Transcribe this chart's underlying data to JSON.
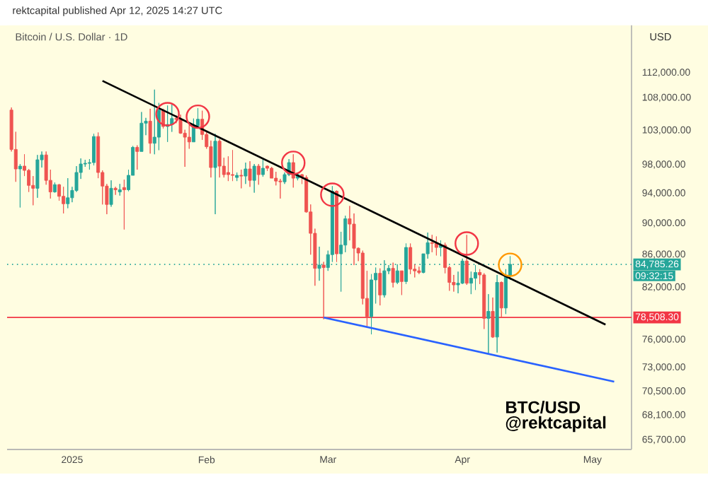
{
  "chart_data": {
    "type": "candlestick",
    "title": "Bitcoin / U.S. Dollar · 1D",
    "ylabel": "USD",
    "annotations": [
      "rektcapital published Apr 12, 2025 14:27 UTC",
      "BTC/USD",
      "@rektcapital",
      "09:32:15"
    ],
    "log": true,
    "xlim": [
      "2024-12-17",
      "2025-05-10"
    ],
    "ylim": [
      64800,
      120000
    ],
    "xticks": [
      {
        "value": "2025-01-01",
        "label": "2025"
      },
      {
        "value": "2025-02-01",
        "label": "Feb"
      },
      {
        "value": "2025-03-01",
        "label": "Mar"
      },
      {
        "value": "2025-04-01",
        "label": "Apr"
      },
      {
        "value": "2025-05-01",
        "label": "May"
      }
    ],
    "yticks": [
      {
        "value": 112000,
        "label": "112,000.00"
      },
      {
        "value": 108000,
        "label": "108,000.00"
      },
      {
        "value": 103000,
        "label": "103,000.00"
      },
      {
        "value": 98000,
        "label": "98,000.00"
      },
      {
        "value": 94000,
        "label": "94,000.00"
      },
      {
        "value": 90000,
        "label": "90,000.00"
      },
      {
        "value": 86000,
        "label": "86,000.00"
      },
      {
        "value": 82000,
        "label": "82,000.00"
      },
      {
        "value": 76000,
        "label": "76,000.00"
      },
      {
        "value": 73000,
        "label": "73,000.00"
      },
      {
        "value": 70500,
        "label": "70,500.00"
      },
      {
        "value": 68100,
        "label": "68,100.00"
      },
      {
        "value": 65700,
        "label": "65,700.00"
      }
    ],
    "x": [
      "2024-12-18",
      "2024-12-19",
      "2024-12-20",
      "2024-12-21",
      "2024-12-22",
      "2024-12-23",
      "2024-12-24",
      "2024-12-25",
      "2024-12-26",
      "2024-12-27",
      "2024-12-28",
      "2024-12-29",
      "2024-12-30",
      "2024-12-31",
      "2025-01-01",
      "2025-01-02",
      "2025-01-03",
      "2025-01-04",
      "2025-01-05",
      "2025-01-06",
      "2025-01-07",
      "2025-01-08",
      "2025-01-09",
      "2025-01-10",
      "2025-01-11",
      "2025-01-12",
      "2025-01-13",
      "2025-01-14",
      "2025-01-15",
      "2025-01-16",
      "2025-01-17",
      "2025-01-18",
      "2025-01-19",
      "2025-01-20",
      "2025-01-21",
      "2025-01-22",
      "2025-01-23",
      "2025-01-24",
      "2025-01-25",
      "2025-01-26",
      "2025-01-27",
      "2025-01-28",
      "2025-01-29",
      "2025-01-30",
      "2025-01-31",
      "2025-02-01",
      "2025-02-02",
      "2025-02-03",
      "2025-02-04",
      "2025-02-05",
      "2025-02-06",
      "2025-02-07",
      "2025-02-08",
      "2025-02-09",
      "2025-02-10",
      "2025-02-11",
      "2025-02-12",
      "2025-02-13",
      "2025-02-14",
      "2025-02-15",
      "2025-02-16",
      "2025-02-17",
      "2025-02-18",
      "2025-02-19",
      "2025-02-20",
      "2025-02-21",
      "2025-02-22",
      "2025-02-23",
      "2025-02-24",
      "2025-02-25",
      "2025-02-26",
      "2025-02-27",
      "2025-02-28",
      "2025-03-01",
      "2025-03-02",
      "2025-03-03",
      "2025-03-04",
      "2025-03-05",
      "2025-03-06",
      "2025-03-07",
      "2025-03-08",
      "2025-03-09",
      "2025-03-10",
      "2025-03-11",
      "2025-03-12",
      "2025-03-13",
      "2025-03-14",
      "2025-03-15",
      "2025-03-16",
      "2025-03-17",
      "2025-03-18",
      "2025-03-19",
      "2025-03-20",
      "2025-03-21",
      "2025-03-22",
      "2025-03-23",
      "2025-03-24",
      "2025-03-25",
      "2025-03-26",
      "2025-03-27",
      "2025-03-28",
      "2025-03-29",
      "2025-03-30",
      "2025-03-31",
      "2025-04-01",
      "2025-04-02",
      "2025-04-03",
      "2025-04-04",
      "2025-04-05",
      "2025-04-06",
      "2025-04-07",
      "2025-04-08",
      "2025-04-09",
      "2025-04-10",
      "2025-04-11",
      "2025-04-12"
    ],
    "ohlc": [
      [
        106100,
        106500,
        99900,
        100200
      ],
      [
        100200,
        102800,
        95600,
        97400
      ],
      [
        97400,
        98100,
        92100,
        97800
      ],
      [
        97800,
        99500,
        96400,
        97200
      ],
      [
        97200,
        97400,
        94200,
        95100
      ],
      [
        95100,
        96400,
        92400,
        94700
      ],
      [
        94700,
        99400,
        93400,
        98700
      ],
      [
        98700,
        99900,
        97600,
        99400
      ],
      [
        99400,
        99900,
        95200,
        95800
      ],
      [
        95800,
        97300,
        93300,
        94200
      ],
      [
        94200,
        95500,
        94100,
        95200
      ],
      [
        95200,
        95300,
        93000,
        93600
      ],
      [
        93600,
        94900,
        91300,
        92600
      ],
      [
        92600,
        96100,
        92000,
        93400
      ],
      [
        93400,
        94900,
        92800,
        94400
      ],
      [
        94400,
        97800,
        94200,
        96900
      ],
      [
        96900,
        98900,
        96000,
        98100
      ],
      [
        98100,
        98700,
        97700,
        98200
      ],
      [
        98200,
        98800,
        97300,
        98300
      ],
      [
        98300,
        102500,
        97900,
        102100
      ],
      [
        102100,
        102700,
        96100,
        96900
      ],
      [
        96900,
        97200,
        92500,
        95000
      ],
      [
        95000,
        95300,
        91200,
        92500
      ],
      [
        92500,
        95800,
        92200,
        94700
      ],
      [
        94700,
        94900,
        93800,
        94500
      ],
      [
        94200,
        95300,
        93700,
        94500
      ],
      [
        94800,
        95900,
        89200,
        94500
      ],
      [
        94500,
        97300,
        94300,
        96500
      ],
      [
        96500,
        100700,
        96500,
        100500
      ],
      [
        100500,
        100800,
        97300,
        99900
      ],
      [
        99900,
        105800,
        99900,
        104100
      ],
      [
        104100,
        104900,
        102300,
        104400
      ],
      [
        104400,
        106300,
        99600,
        101100
      ],
      [
        101100,
        109300,
        99500,
        102000
      ],
      [
        102000,
        107200,
        100100,
        106100
      ],
      [
        106100,
        106300,
        103300,
        103600
      ],
      [
        103600,
        106800,
        101300,
        103900
      ],
      [
        103900,
        107100,
        102800,
        104800
      ],
      [
        104800,
        105300,
        104100,
        104700
      ],
      [
        104700,
        105400,
        102500,
        102600
      ],
      [
        102600,
        103100,
        97700,
        102000
      ],
      [
        102000,
        103800,
        100300,
        101300
      ],
      [
        101300,
        104800,
        101300,
        103700
      ],
      [
        103700,
        106400,
        103300,
        104700
      ],
      [
        104700,
        106000,
        101600,
        102400
      ],
      [
        102400,
        102800,
        100300,
        100600
      ],
      [
        100600,
        101500,
        96200,
        97600
      ],
      [
        97600,
        102500,
        91200,
        101400
      ],
      [
        101400,
        101700,
        96200,
        97800
      ],
      [
        97800,
        99000,
        96200,
        96600
      ],
      [
        96900,
        99200,
        95700,
        96600
      ],
      [
        96600,
        100100,
        95700,
        96500
      ],
      [
        96200,
        96900,
        95700,
        96500
      ],
      [
        96500,
        97300,
        94700,
        96400
      ],
      [
        96400,
        98300,
        95300,
        97400
      ],
      [
        97400,
        98500,
        94900,
        95800
      ],
      [
        95800,
        98100,
        94100,
        97800
      ],
      [
        97800,
        98100,
        95200,
        96600
      ],
      [
        96600,
        98800,
        96300,
        97500
      ],
      [
        97800,
        97900,
        97100,
        97500
      ],
      [
        97500,
        97700,
        96100,
        96100
      ],
      [
        96100,
        97000,
        95100,
        95700
      ],
      [
        95700,
        96000,
        93300,
        95600
      ],
      [
        95600,
        96900,
        95300,
        96600
      ],
      [
        96600,
        98800,
        96400,
        98300
      ],
      [
        98300,
        99500,
        94800,
        96100
      ],
      [
        96100,
        96900,
        95800,
        96600
      ],
      [
        96600,
        96700,
        95300,
        96200
      ],
      [
        96200,
        96500,
        91400,
        91500
      ],
      [
        91500,
        92500,
        86000,
        88700
      ],
      [
        88700,
        89300,
        82200,
        84300
      ],
      [
        84300,
        87000,
        82800,
        84700
      ],
      [
        84700,
        85100,
        78300,
        84400
      ],
      [
        84400,
        86500,
        84000,
        86000
      ],
      [
        86000,
        95000,
        85100,
        94300
      ],
      [
        94300,
        94400,
        85100,
        86100
      ],
      [
        86100,
        88900,
        81500,
        87200
      ],
      [
        87200,
        91000,
        86300,
        90600
      ],
      [
        90600,
        92300,
        87800,
        89900
      ],
      [
        89900,
        91300,
        84700,
        86800
      ],
      [
        86800,
        86900,
        85200,
        86200
      ],
      [
        86200,
        86500,
        80000,
        80700
      ],
      [
        80700,
        84000,
        77500,
        78600
      ],
      [
        78600,
        83600,
        76600,
        82900
      ],
      [
        82900,
        84400,
        80100,
        83700
      ],
      [
        83700,
        84300,
        79900,
        81100
      ],
      [
        81100,
        85300,
        80800,
        84000
      ],
      [
        84000,
        84700,
        83600,
        84300
      ],
      [
        84300,
        85000,
        82000,
        82600
      ],
      [
        82600,
        84800,
        82400,
        84000
      ],
      [
        84000,
        84000,
        81100,
        82700
      ],
      [
        82700,
        87400,
        82400,
        86900
      ],
      [
        86900,
        87400,
        83600,
        84200
      ],
      [
        84200,
        84800,
        83200,
        84000
      ],
      [
        84000,
        84500,
        83600,
        83800
      ],
      [
        83800,
        86100,
        83700,
        86100
      ],
      [
        86100,
        88800,
        85500,
        87500
      ],
      [
        87500,
        88500,
        86300,
        87400
      ],
      [
        87400,
        88300,
        85900,
        86900
      ],
      [
        86900,
        87800,
        85800,
        87200
      ],
      [
        87200,
        87500,
        83700,
        84400
      ],
      [
        84400,
        84600,
        81600,
        82600
      ],
      [
        82600,
        83500,
        81500,
        82300
      ],
      [
        82300,
        83900,
        81300,
        82500
      ],
      [
        82500,
        85500,
        82400,
        85200
      ],
      [
        85200,
        88500,
        82300,
        82500
      ],
      [
        82500,
        83900,
        81200,
        83100
      ],
      [
        83100,
        84700,
        81700,
        83800
      ],
      [
        83800,
        84200,
        82400,
        83500
      ],
      [
        83500,
        83700,
        77200,
        78400
      ],
      [
        78400,
        81200,
        74400,
        79200
      ],
      [
        79200,
        80800,
        76200,
        76300
      ],
      [
        76300,
        83500,
        74600,
        82600
      ],
      [
        82600,
        82700,
        78500,
        79600
      ],
      [
        79600,
        84200,
        78900,
        83400
      ],
      [
        83400,
        85800,
        82900,
        84800
      ]
    ],
    "series": [
      {
        "type": "line",
        "x": [
          "2025-01-08",
          "2025-05-04"
        ],
        "values": [
          110700,
          77700
        ],
        "color": "#000000"
      },
      {
        "type": "line",
        "x": [
          "2025-02-28",
          "2025-05-06"
        ],
        "values": [
          78500,
          71500
        ],
        "color": "#2962ff"
      }
    ],
    "ref_lines": [
      {
        "axis": "y",
        "value": 78508.3,
        "label": "78,508.30",
        "color": "#f23645",
        "line_style": "solid"
      },
      {
        "axis": "y",
        "value": 84785.26,
        "label": "84,785.26",
        "color": "#26a69a",
        "line_style": "dotted"
      }
    ]
  }
}
